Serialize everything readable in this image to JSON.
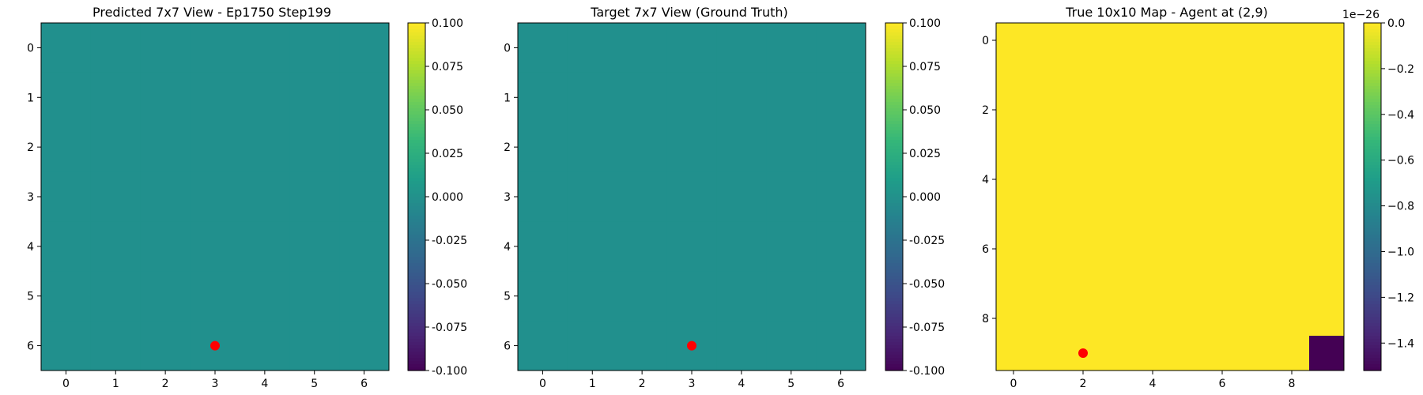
{
  "colors": {
    "grid_value_teal": "#21908d",
    "grid_value_yellow": "#fde725",
    "grid_value_dark": "#440154",
    "agent_marker": "#ff0000"
  },
  "colormap": "viridis",
  "chart_data": [
    {
      "type": "heatmap",
      "title": "Predicted 7x7 View - Ep1750 Step199",
      "rows": 7,
      "cols": 7,
      "values": [
        [
          0,
          0,
          0,
          0,
          0,
          0,
          0
        ],
        [
          0,
          0,
          0,
          0,
          0,
          0,
          0
        ],
        [
          0,
          0,
          0,
          0,
          0,
          0,
          0
        ],
        [
          0,
          0,
          0,
          0,
          0,
          0,
          0
        ],
        [
          0,
          0,
          0,
          0,
          0,
          0,
          0
        ],
        [
          0,
          0,
          0,
          0,
          0,
          0,
          0
        ],
        [
          0,
          0,
          0,
          0,
          0,
          0,
          0
        ]
      ],
      "x_ticks": [
        "0",
        "1",
        "2",
        "3",
        "4",
        "5",
        "6"
      ],
      "y_ticks": [
        "0",
        "1",
        "2",
        "3",
        "4",
        "5",
        "6"
      ],
      "marker": {
        "x": 3,
        "y": 6
      },
      "colorbar": {
        "min": -0.1,
        "max": 0.1,
        "ticks": [
          "-0.100",
          "-0.075",
          "-0.050",
          "-0.025",
          "0.000",
          "0.025",
          "0.050",
          "0.075",
          "0.100"
        ],
        "tick_values": [
          -0.1,
          -0.075,
          -0.05,
          -0.025,
          0,
          0.025,
          0.05,
          0.075,
          0.1
        ],
        "offset_label": ""
      }
    },
    {
      "type": "heatmap",
      "title": "Target 7x7 View (Ground Truth)",
      "rows": 7,
      "cols": 7,
      "values": [
        [
          0,
          0,
          0,
          0,
          0,
          0,
          0
        ],
        [
          0,
          0,
          0,
          0,
          0,
          0,
          0
        ],
        [
          0,
          0,
          0,
          0,
          0,
          0,
          0
        ],
        [
          0,
          0,
          0,
          0,
          0,
          0,
          0
        ],
        [
          0,
          0,
          0,
          0,
          0,
          0,
          0
        ],
        [
          0,
          0,
          0,
          0,
          0,
          0,
          0
        ],
        [
          0,
          0,
          0,
          0,
          0,
          0,
          0
        ]
      ],
      "x_ticks": [
        "0",
        "1",
        "2",
        "3",
        "4",
        "5",
        "6"
      ],
      "y_ticks": [
        "0",
        "1",
        "2",
        "3",
        "4",
        "5",
        "6"
      ],
      "marker": {
        "x": 3,
        "y": 6
      },
      "colorbar": {
        "min": -0.1,
        "max": 0.1,
        "ticks": [
          "-0.100",
          "-0.075",
          "-0.050",
          "-0.025",
          "0.000",
          "0.025",
          "0.050",
          "0.075",
          "0.100"
        ],
        "tick_values": [
          -0.1,
          -0.075,
          -0.05,
          -0.025,
          0,
          0.025,
          0.05,
          0.075,
          0.1
        ],
        "offset_label": ""
      }
    },
    {
      "type": "heatmap",
      "title": "True 10x10 Map - Agent at (2,9)",
      "rows": 10,
      "cols": 10,
      "values": [
        [
          0,
          0,
          0,
          0,
          0,
          0,
          0,
          0,
          0,
          0
        ],
        [
          0,
          0,
          0,
          0,
          0,
          0,
          0,
          0,
          0,
          0
        ],
        [
          0,
          0,
          0,
          0,
          0,
          0,
          0,
          0,
          0,
          0
        ],
        [
          0,
          0,
          0,
          0,
          0,
          0,
          0,
          0,
          0,
          0
        ],
        [
          0,
          0,
          0,
          0,
          0,
          0,
          0,
          0,
          0,
          0
        ],
        [
          0,
          0,
          0,
          0,
          0,
          0,
          0,
          0,
          0,
          0
        ],
        [
          0,
          0,
          0,
          0,
          0,
          0,
          0,
          0,
          0,
          0
        ],
        [
          0,
          0,
          0,
          0,
          0,
          0,
          0,
          0,
          0,
          0
        ],
        [
          0,
          0,
          0,
          0,
          0,
          0,
          0,
          0,
          0,
          0
        ],
        [
          0,
          0,
          0,
          0,
          0,
          0,
          0,
          0,
          0,
          -1.52
        ]
      ],
      "x_ticks": [
        "0",
        "2",
        "4",
        "6",
        "8"
      ],
      "x_tick_values": [
        0,
        2,
        4,
        6,
        8
      ],
      "y_ticks": [
        "0",
        "2",
        "4",
        "6",
        "8"
      ],
      "y_tick_values": [
        0,
        2,
        4,
        6,
        8
      ],
      "marker": {
        "x": 2,
        "y": 9
      },
      "colorbar": {
        "min": -1.52,
        "max": 0.0,
        "ticks": [
          "−1.4",
          "−1.2",
          "−1.0",
          "−0.8",
          "−0.6",
          "−0.4",
          "−0.2",
          "0.0"
        ],
        "tick_values": [
          -1.4,
          -1.2,
          -1.0,
          -0.8,
          -0.6,
          -0.4,
          -0.2,
          0.0
        ],
        "offset_label": "1e−26"
      }
    }
  ]
}
